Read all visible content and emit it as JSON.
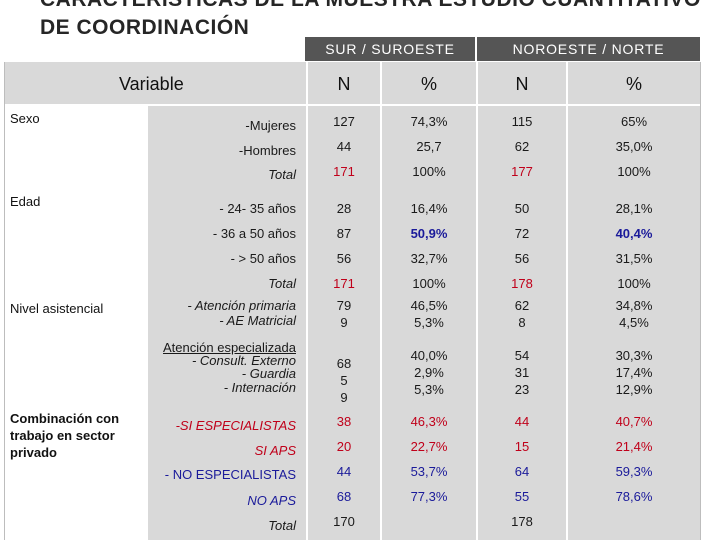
{
  "title": "CARACTERÍSTICAS DE LA MUESTRA ESTUDIO CUANTITATIVO DE COORDINACIÓN",
  "regions": {
    "sur": "SUR / SUROESTE",
    "noroeste": "NOROESTE / NORTE"
  },
  "header": {
    "variable": "Variable",
    "n1": "N",
    "p1": "%",
    "n2": "N",
    "p2": "%"
  },
  "sections": {
    "sexo": "Sexo",
    "edad": "Edad",
    "nivel": "Nivel asistencial",
    "combinacion": "Combinación con trabajo en sector privado"
  },
  "rows": {
    "mujeres": {
      "label": "-Mujeres",
      "n1": "127",
      "p1": "74,3%",
      "n2": "115",
      "p2": "65%"
    },
    "hombres": {
      "label": "-Hombres",
      "n1": "44",
      "p1": "25,7",
      "n2": "62",
      "p2": "35,0%"
    },
    "total_sexo": {
      "label": "Total",
      "n1": "171",
      "p1": "100%",
      "n2": "177",
      "p2": "100%"
    },
    "edad1": {
      "label": "- 24- 35 años",
      "n1": "28",
      "p1": "16,4%",
      "n2": "50",
      "p2": "28,1%"
    },
    "edad2": {
      "label": "- 36 a 50 años",
      "n1": "87",
      "p1": "50,9%",
      "n2": "72",
      "p2": "40,4%"
    },
    "edad3": {
      "label": "- > 50 años",
      "n1": "56",
      "p1": "32,7%",
      "n2": "56",
      "p2": "31,5%"
    },
    "total_edad": {
      "label": "Total",
      "n1": "171",
      "p1": "100%",
      "n2": "178",
      "p2": "100%"
    },
    "primaria": {
      "label1": "- Atención primaria",
      "label2": "- AE Matricial",
      "n1a": "79",
      "n1b": "9",
      "p1a": "46,5%",
      "p1b": "5,3%",
      "n2a": "62",
      "n2b": "8",
      "p2a": "34,8%",
      "p2b": "4,5%"
    },
    "especializada": {
      "label1": "Atención especializada",
      "label2": "- Consult. Externo",
      "label3": "- Guardia",
      "label4": "- Internación",
      "n1a": "68",
      "n1b": "5",
      "n1c": "9",
      "p1a": "40,0%",
      "p1b": "2,9%",
      "p1c": "5,3%",
      "n2a": "54",
      "n2b": "31",
      "n2c": "23",
      "p2a": "30,3%",
      "p2b": "17,4%",
      "p2c": "12,9%"
    },
    "si_esp": {
      "label": "-SI ESPECIALISTAS",
      "n1": "38",
      "p1": "46,3%",
      "n2": "44",
      "p2": "40,7%"
    },
    "si_aps": {
      "label": "SI APS",
      "n1": "20",
      "p1": "22,7%",
      "n2": "15",
      "p2": "21,4%"
    },
    "no_esp": {
      "label": "- NO ESPECIALISTAS",
      "n1": "44",
      "p1": "53,7%",
      "n2": "64",
      "p2": "59,3%"
    },
    "no_aps": {
      "label": "NO APS",
      "n1": "68",
      "p1": "77,3%",
      "n2": "55",
      "p2": "78,6%"
    },
    "total_comb": {
      "label": "Total",
      "n1": "170",
      "n2": "178"
    }
  },
  "colors": {
    "header_bar": "#555555",
    "cell_gray": "#d9d9d9",
    "red": "#c0001a",
    "blue": "#1a1a9a"
  }
}
